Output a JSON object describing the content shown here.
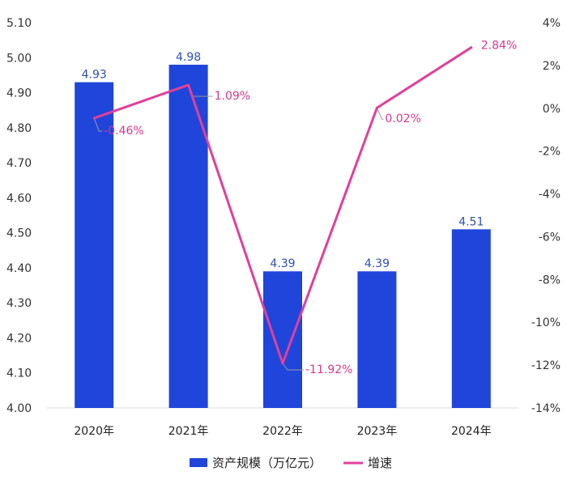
{
  "chart_data": {
    "type": "bar+line",
    "categories": [
      "2020年",
      "2021年",
      "2022年",
      "2023年",
      "2024年"
    ],
    "series": [
      {
        "name": "资产规模（万亿元）",
        "type": "bar",
        "axis": "left",
        "values": [
          4.93,
          4.98,
          4.39,
          4.39,
          4.51
        ],
        "labels": [
          "4.93",
          "4.98",
          "4.39",
          "4.39",
          "4.51"
        ],
        "color": "#1f45db"
      },
      {
        "name": "增速",
        "type": "line",
        "axis": "right",
        "values": [
          -0.46,
          1.09,
          -11.92,
          0.02,
          2.84
        ],
        "labels": [
          "-0.46%",
          "1.09%",
          "-11.92%",
          "0.02%",
          "2.84%"
        ],
        "color": "#e0409a"
      }
    ],
    "y_left": {
      "min": 4.0,
      "max": 5.1,
      "ticks": [
        "5.10",
        "5.00",
        "4.90",
        "4.80",
        "4.70",
        "4.60",
        "4.50",
        "4.40",
        "4.30",
        "4.20",
        "4.10",
        "4.00"
      ]
    },
    "y_right": {
      "min": -14,
      "max": 4,
      "ticks": [
        "4%",
        "2%",
        "0%",
        "-2%",
        "-4%",
        "-6%",
        "-8%",
        "-10%",
        "-12%",
        "-14%"
      ]
    },
    "grid": false,
    "legend": "bottom"
  }
}
